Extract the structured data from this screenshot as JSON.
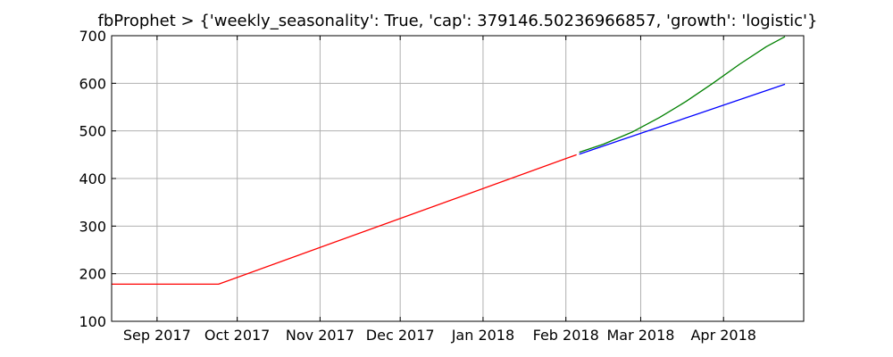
{
  "chart_data": {
    "type": "line",
    "title": "fbProphet > {'weekly_seasonality': True, 'cap': 379146.50236966857, 'growth': 'logistic'}",
    "xlabel": "",
    "ylabel": "",
    "xlim": [
      "2017-08-15",
      "2018-05-01"
    ],
    "ylim": [
      100,
      700
    ],
    "grid": true,
    "x_ticks": [
      {
        "date": "2017-09-01",
        "label": "Sep 2017"
      },
      {
        "date": "2017-10-01",
        "label": "Oct 2017"
      },
      {
        "date": "2017-11-01",
        "label": "Nov 2017"
      },
      {
        "date": "2017-12-01",
        "label": "Dec 2017"
      },
      {
        "date": "2018-01-01",
        "label": "Jan 2018"
      },
      {
        "date": "2018-02-01",
        "label": "Feb 2018"
      },
      {
        "date": "2018-03-01",
        "label": "Mar 2018"
      },
      {
        "date": "2018-04-01",
        "label": "Apr 2018"
      }
    ],
    "y_ticks": [
      100,
      200,
      300,
      400,
      500,
      600,
      700
    ],
    "series": [
      {
        "color": "#ff0000",
        "points": [
          {
            "x": "2017-08-15",
            "y": 178
          },
          {
            "x": "2017-09-24",
            "y": 178
          },
          {
            "x": "2018-02-05",
            "y": 450
          }
        ]
      },
      {
        "color": "#008000",
        "points": [
          {
            "x": "2018-02-06",
            "y": 455
          },
          {
            "x": "2018-02-15",
            "y": 472
          },
          {
            "x": "2018-02-26",
            "y": 498
          },
          {
            "x": "2018-03-08",
            "y": 528
          },
          {
            "x": "2018-03-18",
            "y": 562
          },
          {
            "x": "2018-03-28",
            "y": 600
          },
          {
            "x": "2018-04-07",
            "y": 640
          },
          {
            "x": "2018-04-17",
            "y": 677
          },
          {
            "x": "2018-04-24",
            "y": 698
          }
        ]
      },
      {
        "color": "#0000ff",
        "points": [
          {
            "x": "2018-02-06",
            "y": 451
          },
          {
            "x": "2018-04-24",
            "y": 598
          }
        ]
      }
    ]
  }
}
